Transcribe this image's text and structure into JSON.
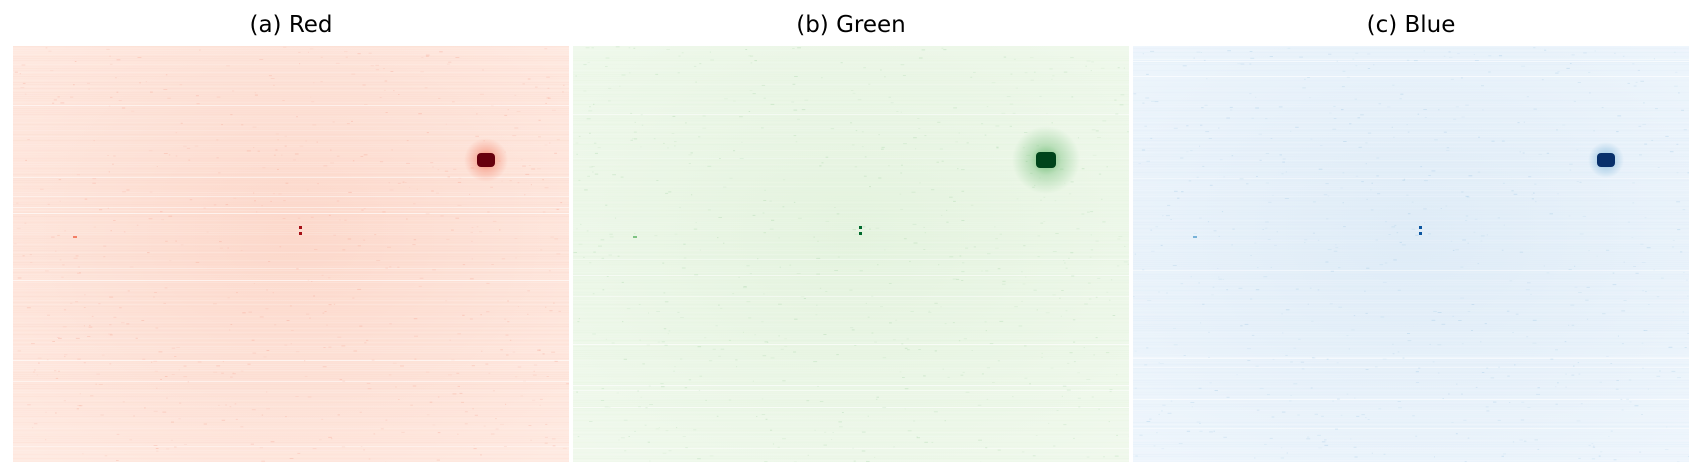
{
  "figure": {
    "panels": [
      {
        "key": "red",
        "title": "(a) Red",
        "colors": {
          "low": "#fff5f0",
          "base": "#fcd5c7",
          "mid": "#f0664a",
          "high": "#a50f15",
          "peak": "#67000d"
        }
      },
      {
        "key": "green",
        "title": "(b) Green",
        "colors": {
          "low": "#f7fcf5",
          "base": "#e2f2dc",
          "mid": "#63b66a",
          "high": "#00692c",
          "peak": "#00441b"
        }
      },
      {
        "key": "blue",
        "title": "(c) Blue",
        "colors": {
          "low": "#f7fbff",
          "base": "#dceaf6",
          "mid": "#5ba2d0",
          "high": "#0b559f",
          "peak": "#08306b"
        }
      }
    ]
  }
}
